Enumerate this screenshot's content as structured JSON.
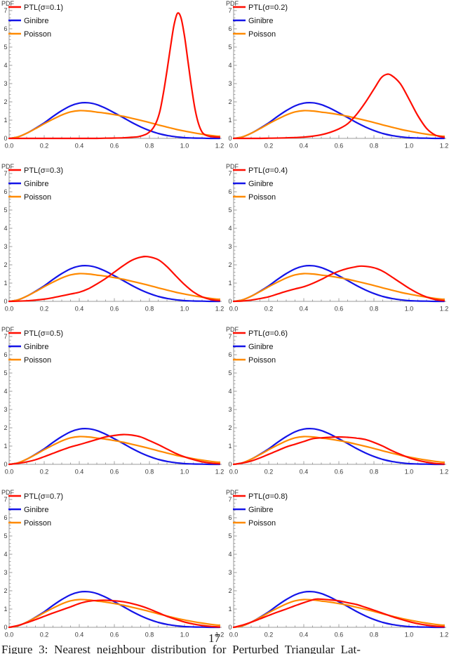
{
  "page": {
    "page_number": "17",
    "caption": "Figure 3:  Nearest neighbour distribution for Perturbed Triangular Lat-"
  },
  "style": {
    "ptl_color": "#FF0D00",
    "ginibre_color": "#1414E8",
    "poisson_color": "#FF8A00",
    "axis_color": "#9A9A9A",
    "tick_label_color": "#3A3A3A",
    "legend_text_color": "#111111"
  },
  "chart_data": {
    "type": "line",
    "layout": "grid-4x2",
    "title": "",
    "xlabel": "",
    "ylabel": "PDF",
    "xlim": [
      0,
      1.2
    ],
    "ylim": [
      0,
      7
    ],
    "xticks": [
      "0.0",
      "0.2",
      "0.4",
      "0.6",
      "0.8",
      "1.0",
      "1.2"
    ],
    "yticks": [
      "0",
      "1",
      "2",
      "3",
      "4",
      "5",
      "6",
      "7"
    ],
    "grid": false,
    "legend_position": "top-left",
    "legend_labels": {
      "ginibre": "Ginibre",
      "poisson": "Poisson"
    },
    "shared_series": {
      "ginibre": {
        "name": "Ginibre",
        "x": [
          0,
          0.05,
          0.1,
          0.15,
          0.2,
          0.25,
          0.3,
          0.35,
          0.4,
          0.45,
          0.5,
          0.55,
          0.6,
          0.65,
          0.7,
          0.75,
          0.8,
          0.85,
          0.9,
          0.95,
          1.0,
          1.05,
          1.1,
          1.15,
          1.2
        ],
        "y": [
          0,
          0.08,
          0.28,
          0.55,
          0.85,
          1.2,
          1.52,
          1.78,
          1.93,
          1.95,
          1.85,
          1.65,
          1.4,
          1.14,
          0.87,
          0.63,
          0.43,
          0.27,
          0.16,
          0.09,
          0.04,
          0.02,
          0.01,
          0,
          0
        ]
      },
      "poisson": {
        "name": "Poisson",
        "x": [
          0,
          0.05,
          0.1,
          0.15,
          0.2,
          0.25,
          0.3,
          0.35,
          0.4,
          0.45,
          0.5,
          0.55,
          0.6,
          0.65,
          0.7,
          0.75,
          0.8,
          0.85,
          0.9,
          0.95,
          1.0,
          1.05,
          1.1,
          1.15,
          1.2
        ],
        "y": [
          0,
          0.08,
          0.28,
          0.53,
          0.8,
          1.05,
          1.28,
          1.45,
          1.52,
          1.5,
          1.44,
          1.38,
          1.3,
          1.21,
          1.1,
          0.99,
          0.87,
          0.74,
          0.62,
          0.5,
          0.4,
          0.31,
          0.23,
          0.16,
          0.11
        ]
      }
    },
    "subplots": [
      {
        "legend_ptl": "PTL(σ=0.1)",
        "ptl": {
          "x": [
            0,
            0.1,
            0.2,
            0.3,
            0.4,
            0.5,
            0.55,
            0.6,
            0.65,
            0.7,
            0.74,
            0.78,
            0.8,
            0.82,
            0.84,
            0.86,
            0.88,
            0.9,
            0.92,
            0.94,
            0.96,
            0.98,
            1.0,
            1.02,
            1.04,
            1.06,
            1.08,
            1.1,
            1.12,
            1.15,
            1.2
          ],
          "y": [
            0,
            0,
            0,
            0,
            0,
            0,
            0.01,
            0.02,
            0.03,
            0.06,
            0.1,
            0.22,
            0.35,
            0.55,
            0.9,
            1.5,
            2.5,
            3.7,
            5.0,
            6.2,
            6.85,
            6.6,
            5.6,
            4.2,
            2.8,
            1.6,
            0.8,
            0.35,
            0.18,
            0.1,
            0.06
          ]
        }
      },
      {
        "legend_ptl": "PTL(σ=0.2)",
        "ptl": {
          "x": [
            0,
            0.1,
            0.2,
            0.3,
            0.4,
            0.45,
            0.5,
            0.55,
            0.6,
            0.65,
            0.7,
            0.75,
            0.8,
            0.84,
            0.87,
            0.9,
            0.95,
            1.0,
            1.05,
            1.1,
            1.15,
            1.2
          ],
          "y": [
            0,
            0,
            0.01,
            0.03,
            0.07,
            0.12,
            0.2,
            0.33,
            0.52,
            0.8,
            1.3,
            1.95,
            2.7,
            3.3,
            3.5,
            3.45,
            3.0,
            2.15,
            1.25,
            0.55,
            0.18,
            0.06
          ]
        }
      },
      {
        "legend_ptl": "PTL(σ=0.3)",
        "ptl": {
          "x": [
            0,
            0.05,
            0.1,
            0.15,
            0.2,
            0.25,
            0.3,
            0.35,
            0.4,
            0.45,
            0.5,
            0.55,
            0.6,
            0.65,
            0.7,
            0.75,
            0.79,
            0.85,
            0.9,
            0.95,
            1.0,
            1.05,
            1.1,
            1.15,
            1.2
          ],
          "y": [
            0,
            0.01,
            0.03,
            0.07,
            0.12,
            0.2,
            0.3,
            0.4,
            0.5,
            0.68,
            0.95,
            1.25,
            1.6,
            1.95,
            2.25,
            2.42,
            2.45,
            2.28,
            1.9,
            1.4,
            0.92,
            0.52,
            0.25,
            0.1,
            0.04
          ]
        }
      },
      {
        "legend_ptl": "PTL(σ=0.4)",
        "ptl": {
          "x": [
            0,
            0.05,
            0.1,
            0.15,
            0.2,
            0.25,
            0.3,
            0.35,
            0.4,
            0.45,
            0.5,
            0.55,
            0.6,
            0.65,
            0.7,
            0.73,
            0.78,
            0.82,
            0.86,
            0.9,
            0.95,
            1.0,
            1.05,
            1.1,
            1.15,
            1.2
          ],
          "y": [
            0,
            0.02,
            0.07,
            0.15,
            0.25,
            0.4,
            0.55,
            0.68,
            0.8,
            0.98,
            1.2,
            1.45,
            1.65,
            1.8,
            1.9,
            1.93,
            1.88,
            1.78,
            1.6,
            1.35,
            1.03,
            0.72,
            0.45,
            0.24,
            0.1,
            0.04
          ]
        }
      },
      {
        "legend_ptl": "PTL(σ=0.5)",
        "ptl": {
          "x": [
            0,
            0.05,
            0.1,
            0.15,
            0.2,
            0.25,
            0.3,
            0.35,
            0.4,
            0.45,
            0.5,
            0.55,
            0.6,
            0.65,
            0.7,
            0.75,
            0.8,
            0.85,
            0.9,
            0.95,
            1.0,
            1.05,
            1.1,
            1.15,
            1.2
          ],
          "y": [
            0,
            0.05,
            0.13,
            0.25,
            0.42,
            0.6,
            0.78,
            0.95,
            1.08,
            1.22,
            1.36,
            1.5,
            1.58,
            1.63,
            1.6,
            1.5,
            1.3,
            1.08,
            0.84,
            0.6,
            0.41,
            0.26,
            0.14,
            0.07,
            0.03
          ]
        }
      },
      {
        "legend_ptl": "PTL(σ=0.6)",
        "ptl": {
          "x": [
            0,
            0.05,
            0.1,
            0.15,
            0.2,
            0.25,
            0.3,
            0.35,
            0.4,
            0.45,
            0.5,
            0.55,
            0.6,
            0.65,
            0.7,
            0.75,
            0.8,
            0.85,
            0.9,
            0.95,
            1.0,
            1.05,
            1.1,
            1.15,
            1.2
          ],
          "y": [
            0,
            0.07,
            0.18,
            0.35,
            0.55,
            0.75,
            0.95,
            1.1,
            1.25,
            1.4,
            1.45,
            1.48,
            1.5,
            1.48,
            1.44,
            1.36,
            1.2,
            1.0,
            0.76,
            0.55,
            0.36,
            0.22,
            0.12,
            0.05,
            0.02
          ]
        }
      },
      {
        "legend_ptl": "PTL(σ=0.7)",
        "ptl": {
          "x": [
            0,
            0.05,
            0.1,
            0.15,
            0.2,
            0.25,
            0.3,
            0.35,
            0.4,
            0.45,
            0.5,
            0.55,
            0.6,
            0.65,
            0.7,
            0.75,
            0.8,
            0.85,
            0.9,
            0.95,
            1.0,
            1.05,
            1.1,
            1.15,
            1.2
          ],
          "y": [
            0,
            0.1,
            0.25,
            0.42,
            0.6,
            0.78,
            0.95,
            1.12,
            1.3,
            1.42,
            1.47,
            1.48,
            1.45,
            1.4,
            1.3,
            1.17,
            1.0,
            0.8,
            0.6,
            0.44,
            0.29,
            0.18,
            0.1,
            0.05,
            0.02
          ]
        }
      },
      {
        "legend_ptl": "PTL(σ=0.8)",
        "ptl": {
          "x": [
            0,
            0.05,
            0.1,
            0.15,
            0.2,
            0.25,
            0.3,
            0.35,
            0.4,
            0.45,
            0.48,
            0.55,
            0.6,
            0.65,
            0.7,
            0.75,
            0.8,
            0.85,
            0.9,
            0.95,
            1.0,
            1.05,
            1.1,
            1.15,
            1.2
          ],
          "y": [
            0,
            0.12,
            0.28,
            0.46,
            0.65,
            0.83,
            1.0,
            1.18,
            1.35,
            1.5,
            1.55,
            1.5,
            1.45,
            1.35,
            1.25,
            1.1,
            0.94,
            0.77,
            0.6,
            0.45,
            0.31,
            0.2,
            0.12,
            0.06,
            0.03
          ]
        }
      }
    ]
  }
}
